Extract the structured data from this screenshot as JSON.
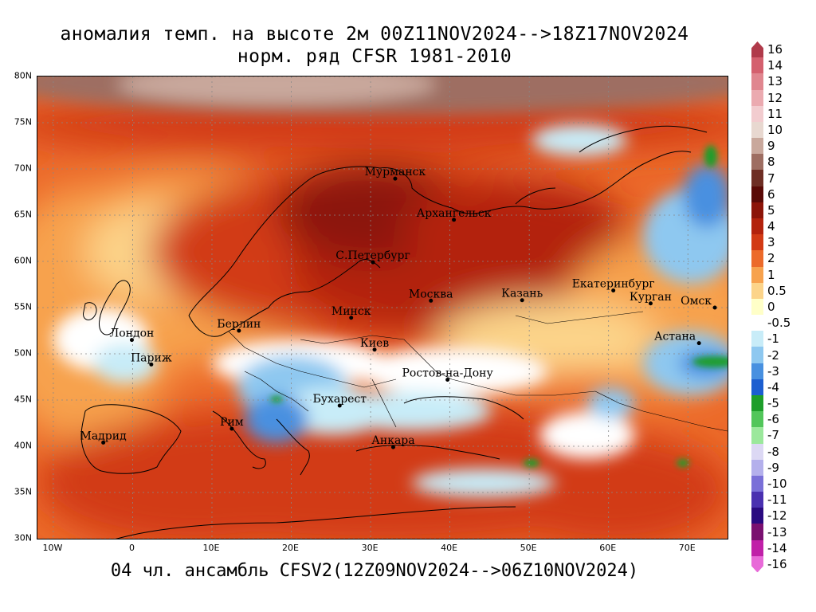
{
  "title_line1": "аномалия темп. на высоте 2м 00Z11NOV2024-->18Z17NOV2024",
  "title_line2": "норм. ряд CFSR 1981-2010",
  "footer": "04 чл. ансамбль CFSV2(12Z09NOV2024-->06Z10NOV2024)",
  "map": {
    "lon_range": [
      -12,
      75
    ],
    "lat_range": [
      30,
      80
    ],
    "lat_ticks": [
      {
        "value": 80,
        "label": "80N"
      },
      {
        "value": 75,
        "label": "75N"
      },
      {
        "value": 70,
        "label": "70N"
      },
      {
        "value": 65,
        "label": "65N"
      },
      {
        "value": 60,
        "label": "60N"
      },
      {
        "value": 55,
        "label": "55N"
      },
      {
        "value": 50,
        "label": "50N"
      },
      {
        "value": 45,
        "label": "45N"
      },
      {
        "value": 40,
        "label": "40N"
      },
      {
        "value": 35,
        "label": "35N"
      },
      {
        "value": 30,
        "label": "30N"
      }
    ],
    "lon_ticks": [
      {
        "value": -10,
        "label": "10W"
      },
      {
        "value": 0,
        "label": "0"
      },
      {
        "value": 10,
        "label": "10E"
      },
      {
        "value": 20,
        "label": "20E"
      },
      {
        "value": 30,
        "label": "30E"
      },
      {
        "value": 40,
        "label": "40E"
      },
      {
        "value": 50,
        "label": "50E"
      },
      {
        "value": 60,
        "label": "60E"
      },
      {
        "value": 70,
        "label": "70E"
      }
    ],
    "cities": [
      {
        "name": "Мурманск",
        "lon": 33.1,
        "lat": 68.95
      },
      {
        "name": "Архангельск",
        "lon": 40.5,
        "lat": 64.5
      },
      {
        "name": "С.Петербург",
        "lon": 30.3,
        "lat": 59.9
      },
      {
        "name": "Москва",
        "lon": 37.6,
        "lat": 55.75
      },
      {
        "name": "Казань",
        "lon": 49.1,
        "lat": 55.8
      },
      {
        "name": "Екатеринбург",
        "lon": 60.6,
        "lat": 56.85
      },
      {
        "name": "Курган",
        "lon": 65.3,
        "lat": 55.45
      },
      {
        "name": "Омск",
        "lon": 73.4,
        "lat": 55.0
      },
      {
        "name": "Астана",
        "lon": 71.4,
        "lat": 51.15
      },
      {
        "name": "Минск",
        "lon": 27.55,
        "lat": 53.9
      },
      {
        "name": "Лондон",
        "lon": -0.1,
        "lat": 51.5
      },
      {
        "name": "Берлин",
        "lon": 13.4,
        "lat": 52.5
      },
      {
        "name": "Париж",
        "lon": 2.35,
        "lat": 48.85
      },
      {
        "name": "Киев",
        "lon": 30.5,
        "lat": 50.45
      },
      {
        "name": "Ростов-на-Дону",
        "lon": 39.7,
        "lat": 47.2
      },
      {
        "name": "Бухарест",
        "lon": 26.1,
        "lat": 44.4
      },
      {
        "name": "Рим",
        "lon": 12.5,
        "lat": 41.9
      },
      {
        "name": "Мадрид",
        "lon": -3.7,
        "lat": 40.4
      },
      {
        "name": "Анкара",
        "lon": 32.85,
        "lat": 39.9
      }
    ]
  },
  "colorbar": {
    "levels": [
      {
        "label": "16",
        "color": "#b03a4a"
      },
      {
        "label": "14",
        "color": "#d4606e"
      },
      {
        "label": "13",
        "color": "#e0868f"
      },
      {
        "label": "12",
        "color": "#ebaab0"
      },
      {
        "label": "11",
        "color": "#f2cccf"
      },
      {
        "label": "10",
        "color": "#e8d8d0"
      },
      {
        "label": "9",
        "color": "#c9a89c"
      },
      {
        "label": "8",
        "color": "#9e6e62"
      },
      {
        "label": "7",
        "color": "#6e2e24"
      },
      {
        "label": "6",
        "color": "#5a0a06"
      },
      {
        "label": "5",
        "color": "#8c1408"
      },
      {
        "label": "4",
        "color": "#b3220c"
      },
      {
        "label": "3",
        "color": "#d23a14"
      },
      {
        "label": "2",
        "color": "#ec6a2a"
      },
      {
        "label": "1",
        "color": "#f7a24e"
      },
      {
        "label": "0.5",
        "color": "#fcd48a"
      },
      {
        "label": "0",
        "color": "#ffffc8"
      },
      {
        "label": "-0.5",
        "color": "#ffffff"
      },
      {
        "label": "-1",
        "color": "#c8ecf8"
      },
      {
        "label": "-2",
        "color": "#8ec8f0"
      },
      {
        "label": "-3",
        "color": "#4890e0"
      },
      {
        "label": "-4",
        "color": "#1c5ed0"
      },
      {
        "label": "-5",
        "color": "#1e9e2a"
      },
      {
        "label": "-6",
        "color": "#52c65a"
      },
      {
        "label": "-7",
        "color": "#9be89c"
      },
      {
        "label": "-8",
        "color": "#dcd8f4"
      },
      {
        "label": "-9",
        "color": "#b4b0ec"
      },
      {
        "label": "-10",
        "color": "#7a70d8"
      },
      {
        "label": "-11",
        "color": "#4a30b0"
      },
      {
        "label": "-12",
        "color": "#2a0a80"
      },
      {
        "label": "-13",
        "color": "#7a1070"
      },
      {
        "label": "-14",
        "color": "#c020a8"
      },
      {
        "label": "-16",
        "color": "#e86ad8"
      }
    ]
  }
}
